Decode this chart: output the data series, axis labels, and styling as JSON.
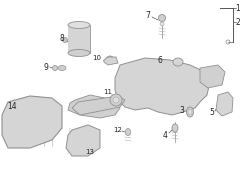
{
  "bg_color": "#ffffff",
  "part_color": "#d8d8d8",
  "part_outline": "#909090",
  "label_color": "#333333",
  "figsize": [
    2.44,
    1.8
  ],
  "dpi": 100
}
